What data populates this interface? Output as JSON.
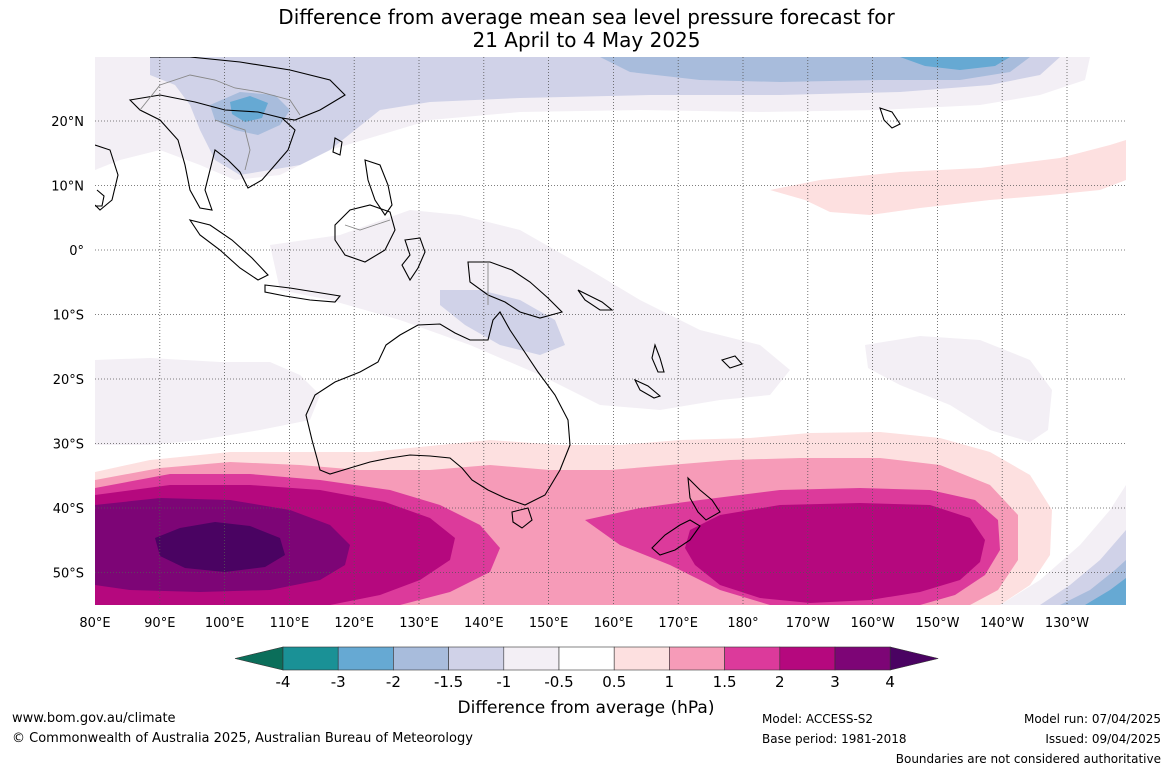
{
  "title": {
    "line1": "Difference from average mean sea level pressure forecast for",
    "line2": "21 April to 4 May 2025"
  },
  "map": {
    "lat_labels": [
      "20°N",
      "10°N",
      "0°",
      "10°S",
      "20°S",
      "30°S",
      "40°S",
      "50°S"
    ],
    "lon_labels": [
      "80°E",
      "90°E",
      "100°E",
      "110°E",
      "120°E",
      "130°E",
      "140°E",
      "150°E",
      "160°E",
      "170°E",
      "180°",
      "170°W",
      "160°W",
      "150°W",
      "140°W",
      "130°W"
    ]
  },
  "legend": {
    "label": "Difference from average (hPa)",
    "ticks": [
      "-4",
      "-3",
      "-2",
      "-1.5",
      "-1",
      "-0.5",
      "0.5",
      "1",
      "1.5",
      "2",
      "3",
      "4"
    ],
    "colors": {
      "lt_-4": "#0b6e5a",
      "-4_-3": "#1a9196",
      "-3_-2": "#66a9d3",
      "-2_-1.5": "#a8bcdc",
      "-1.5_-1": "#d0d2e8",
      "-1_-0.5": "#f3eff5",
      "-0.5_0.5": "#ffffff",
      "0.5_1": "#fde0e0",
      "1_1.5": "#f69bb8",
      "1.5_2": "#dc3a9b",
      "2_3": "#b5087e",
      "3_4": "#7d0576",
      "gt_4": "#4a0362"
    }
  },
  "footer": {
    "website": "www.bom.gov.au/climate",
    "copyright": "© Commonwealth of Australia 2025, Australian Bureau of Meteorology",
    "model": "Model: ACCESS-S2",
    "base_period": "Base period: 1981-2018",
    "model_run": "Model run: 07/04/2025",
    "issued": "Issued: 09/04/2025",
    "disclaimer": "Boundaries are not considered authoritative"
  }
}
